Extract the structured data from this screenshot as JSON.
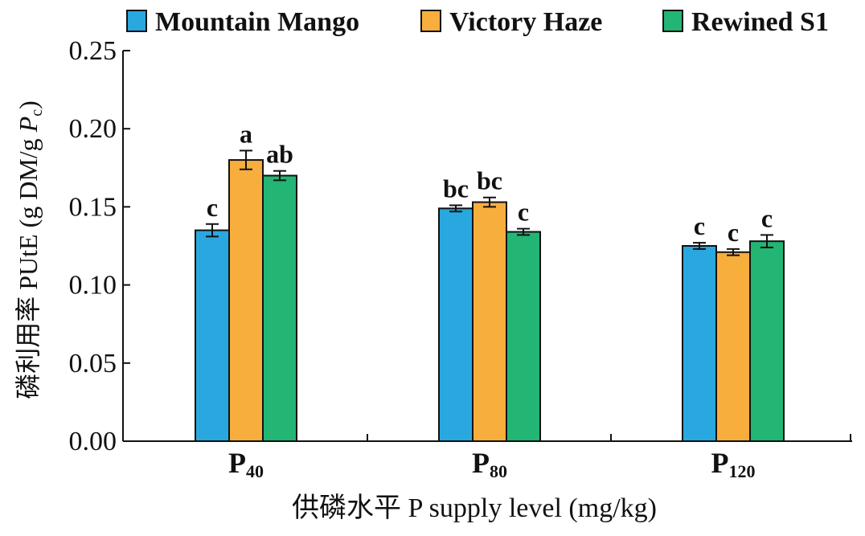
{
  "chart_data": {
    "type": "bar",
    "legend_position": "top",
    "grid": false,
    "title": "",
    "xlabel": "供磷水平 P supply level (mg/kg)",
    "ylabel": "磷利用率 PUtE (g DM/g P_c)",
    "ylabel_parts": {
      "prefix": "磷利用率 PUtE (g DM/g ",
      "italic": "P",
      "sub": "c",
      "suffix": ")"
    },
    "ylim": [
      0,
      0.25
    ],
    "y_ticks": [
      "0.00",
      "0.05",
      "0.10",
      "0.15",
      "0.20",
      "0.25"
    ],
    "categories": [
      {
        "base": "P",
        "sub": "40"
      },
      {
        "base": "P",
        "sub": "80"
      },
      {
        "base": "P",
        "sub": "120"
      }
    ],
    "series": [
      {
        "name": "Mountain Mango",
        "color": "#29a8e0",
        "values": [
          0.135,
          0.149,
          0.125
        ],
        "errors": [
          0.004,
          0.002,
          0.002
        ],
        "labels": [
          "c",
          "bc",
          "c"
        ]
      },
      {
        "name": "Victory Haze",
        "color": "#f7ae3c",
        "values": [
          0.18,
          0.153,
          0.121
        ],
        "errors": [
          0.006,
          0.003,
          0.002
        ],
        "labels": [
          "a",
          "bc",
          "c"
        ]
      },
      {
        "name": "Rewined S1",
        "color": "#23b574",
        "values": [
          0.17,
          0.134,
          0.128
        ],
        "errors": [
          0.003,
          0.002,
          0.004
        ],
        "labels": [
          "ab",
          "c",
          "c"
        ]
      }
    ]
  }
}
